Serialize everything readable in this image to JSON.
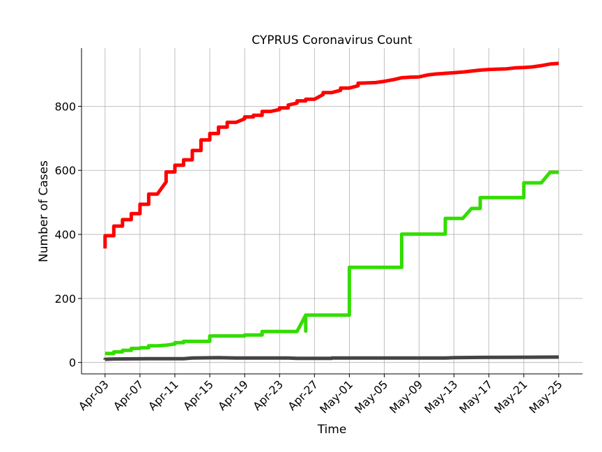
{
  "chart_data": {
    "type": "line",
    "title": "CYPRUS Coronavirus Count",
    "xlabel": "Time",
    "ylabel": "Number of Cases",
    "x_start": "2020-04-03",
    "x_end": "2020-05-25",
    "ylim": [
      -35,
      980
    ],
    "yticks": [
      0,
      200,
      400,
      600,
      800
    ],
    "xticks": [
      "Apr-03",
      "Apr-07",
      "Apr-11",
      "Apr-15",
      "Apr-19",
      "Apr-23",
      "Apr-27",
      "May-01",
      "May-05",
      "May-09",
      "May-13",
      "May-17",
      "May-21",
      "May-25"
    ],
    "grid": true,
    "series": [
      {
        "color": "#ff0000",
        "points": [
          [
            "2020-04-03",
            356
          ],
          [
            "2020-04-03",
            396
          ],
          [
            "2020-04-04",
            396
          ],
          [
            "2020-04-04",
            426
          ],
          [
            "2020-04-05",
            426
          ],
          [
            "2020-04-05",
            446
          ],
          [
            "2020-04-06",
            446
          ],
          [
            "2020-04-06",
            465
          ],
          [
            "2020-04-07",
            465
          ],
          [
            "2020-04-07",
            494
          ],
          [
            "2020-04-08",
            494
          ],
          [
            "2020-04-08",
            526
          ],
          [
            "2020-04-09",
            526
          ],
          [
            "2020-04-10",
            564
          ],
          [
            "2020-04-10",
            595
          ],
          [
            "2020-04-11",
            595
          ],
          [
            "2020-04-11",
            616
          ],
          [
            "2020-04-12",
            616
          ],
          [
            "2020-04-12",
            633
          ],
          [
            "2020-04-13",
            633
          ],
          [
            "2020-04-13",
            662
          ],
          [
            "2020-04-14",
            662
          ],
          [
            "2020-04-14",
            695
          ],
          [
            "2020-04-15",
            695
          ],
          [
            "2020-04-15",
            715
          ],
          [
            "2020-04-16",
            715
          ],
          [
            "2020-04-16",
            735
          ],
          [
            "2020-04-17",
            735
          ],
          [
            "2020-04-17",
            750
          ],
          [
            "2020-04-18",
            750
          ],
          [
            "2020-04-19",
            761
          ],
          [
            "2020-04-19",
            767
          ],
          [
            "2020-04-20",
            767
          ],
          [
            "2020-04-20",
            772
          ],
          [
            "2020-04-21",
            772
          ],
          [
            "2020-04-21",
            784
          ],
          [
            "2020-04-22",
            784
          ],
          [
            "2020-04-23",
            790
          ],
          [
            "2020-04-23",
            795
          ],
          [
            "2020-04-24",
            795
          ],
          [
            "2020-04-24",
            804
          ],
          [
            "2020-04-25",
            810
          ],
          [
            "2020-04-25",
            817
          ],
          [
            "2020-04-26",
            817
          ],
          [
            "2020-04-26",
            822
          ],
          [
            "2020-04-27",
            822
          ],
          [
            "2020-04-28",
            837
          ],
          [
            "2020-04-28",
            843
          ],
          [
            "2020-04-29",
            843
          ],
          [
            "2020-04-30",
            850
          ],
          [
            "2020-04-30",
            857
          ],
          [
            "2020-05-01",
            857
          ],
          [
            "2020-05-02",
            864
          ],
          [
            "2020-05-02",
            872
          ],
          [
            "2020-05-03",
            873
          ],
          [
            "2020-05-04",
            874
          ],
          [
            "2020-05-05",
            878
          ],
          [
            "2020-05-06",
            883
          ],
          [
            "2020-05-07",
            889
          ],
          [
            "2020-05-08",
            891
          ],
          [
            "2020-05-09",
            892
          ],
          [
            "2020-05-10",
            898
          ],
          [
            "2020-05-11",
            901
          ],
          [
            "2020-05-12",
            903
          ],
          [
            "2020-05-13",
            905
          ],
          [
            "2020-05-14",
            907
          ],
          [
            "2020-05-15",
            910
          ],
          [
            "2020-05-16",
            913
          ],
          [
            "2020-05-17",
            915
          ],
          [
            "2020-05-18",
            916
          ],
          [
            "2020-05-19",
            917
          ],
          [
            "2020-05-20",
            920
          ],
          [
            "2020-05-21",
            921
          ],
          [
            "2020-05-22",
            923
          ],
          [
            "2020-05-23",
            927
          ],
          [
            "2020-05-24",
            932
          ],
          [
            "2020-05-25",
            934
          ]
        ]
      },
      {
        "color": "#33dd00",
        "points": [
          [
            "2020-04-03",
            28
          ],
          [
            "2020-04-04",
            28
          ],
          [
            "2020-04-04",
            33
          ],
          [
            "2020-04-05",
            33
          ],
          [
            "2020-04-05",
            38
          ],
          [
            "2020-04-06",
            38
          ],
          [
            "2020-04-06",
            44
          ],
          [
            "2020-04-07",
            44
          ],
          [
            "2020-04-07",
            46
          ],
          [
            "2020-04-08",
            46
          ],
          [
            "2020-04-08",
            52
          ],
          [
            "2020-04-09",
            52
          ],
          [
            "2020-04-10",
            54
          ],
          [
            "2020-04-11",
            58
          ],
          [
            "2020-04-11",
            62
          ],
          [
            "2020-04-12",
            62
          ],
          [
            "2020-04-12",
            66
          ],
          [
            "2020-04-15",
            66
          ],
          [
            "2020-04-15",
            83
          ],
          [
            "2020-04-19",
            83
          ],
          [
            "2020-04-19",
            86
          ],
          [
            "2020-04-21",
            86
          ],
          [
            "2020-04-21",
            97
          ],
          [
            "2020-04-25",
            97
          ],
          [
            "2020-04-26",
            148
          ],
          [
            "2020-04-26",
            98
          ],
          [
            "2020-04-26",
            148
          ],
          [
            "2020-05-01",
            148
          ],
          [
            "2020-05-01",
            297
          ],
          [
            "2020-05-07",
            297
          ],
          [
            "2020-05-07",
            401
          ],
          [
            "2020-05-12",
            401
          ],
          [
            "2020-05-12",
            450
          ],
          [
            "2020-05-14",
            450
          ],
          [
            "2020-05-15",
            481
          ],
          [
            "2020-05-16",
            481
          ],
          [
            "2020-05-16",
            515
          ],
          [
            "2020-05-21",
            515
          ],
          [
            "2020-05-21",
            561
          ],
          [
            "2020-05-23",
            561
          ],
          [
            "2020-05-24",
            594
          ],
          [
            "2020-05-25",
            594
          ]
        ]
      },
      {
        "color": "#444444",
        "points": [
          [
            "2020-04-03",
            9
          ],
          [
            "2020-04-03",
            10
          ],
          [
            "2020-04-04",
            11
          ],
          [
            "2020-04-08",
            12
          ],
          [
            "2020-04-12",
            12
          ],
          [
            "2020-04-13",
            14
          ],
          [
            "2020-04-16",
            15
          ],
          [
            "2020-04-18",
            14
          ],
          [
            "2020-04-24",
            14
          ],
          [
            "2020-04-25",
            13
          ],
          [
            "2020-04-29",
            13
          ],
          [
            "2020-04-29",
            14
          ],
          [
            "2020-05-12",
            14
          ],
          [
            "2020-05-13",
            15
          ],
          [
            "2020-05-16",
            16
          ],
          [
            "2020-05-25",
            17
          ]
        ]
      }
    ]
  }
}
